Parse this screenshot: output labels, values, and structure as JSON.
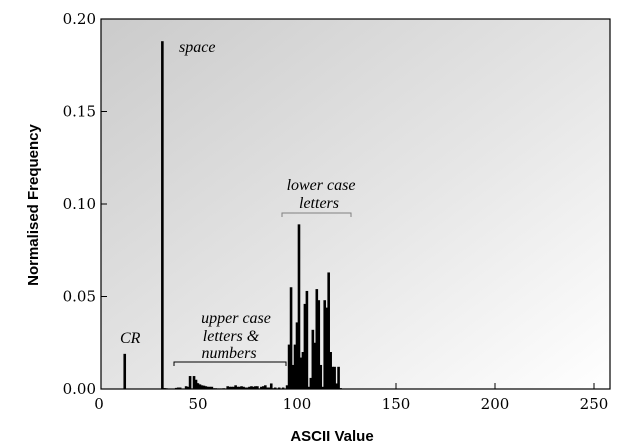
{
  "chart_data": {
    "type": "bar",
    "xlabel": "ASCII Value",
    "ylabel": "Normalised Frequency",
    "xlim": [
      0,
      255
    ],
    "ylim": [
      0,
      0.2
    ],
    "grid": false,
    "xticks": [
      "0",
      "50",
      "100",
      "150",
      "200",
      "250"
    ],
    "yticks": [
      "0.00",
      "0.05",
      "0.10",
      "0.15",
      "0.20"
    ],
    "x": [
      13,
      32,
      33,
      34,
      39,
      40,
      41,
      44,
      45,
      46,
      47,
      48,
      49,
      50,
      51,
      52,
      53,
      54,
      55,
      56,
      57,
      58,
      59,
      60,
      61,
      62,
      63,
      65,
      66,
      67,
      68,
      69,
      70,
      71,
      72,
      73,
      74,
      75,
      76,
      77,
      78,
      79,
      80,
      81,
      82,
      83,
      84,
      85,
      86,
      87,
      88,
      89,
      90,
      91,
      93,
      95,
      96,
      97,
      98,
      99,
      100,
      101,
      102,
      103,
      104,
      105,
      106,
      107,
      108,
      109,
      110,
      111,
      112,
      113,
      114,
      115,
      116,
      117,
      118,
      119,
      120,
      121,
      122
    ],
    "values": [
      0.019,
      0.188,
      0.0005,
      0.0004,
      0.0006,
      0.0008,
      0.0008,
      0.0015,
      0.0012,
      0.007,
      0.0003,
      0.007,
      0.005,
      0.003,
      0.0025,
      0.002,
      0.0018,
      0.0015,
      0.0012,
      0.0012,
      0.0012,
      0.0004,
      0.0004,
      0.0003,
      0.0003,
      0.0003,
      0.0004,
      0.0015,
      0.0012,
      0.0012,
      0.0012,
      0.002,
      0.0012,
      0.0012,
      0.0015,
      0.0012,
      0.0008,
      0.0008,
      0.0012,
      0.0015,
      0.0012,
      0.0015,
      0.0015,
      0.0003,
      0.0012,
      0.0015,
      0.002,
      0.0008,
      0.0008,
      0.003,
      0.0004,
      0.0008,
      0.0003,
      0.0008,
      0.0008,
      0.002,
      0.024,
      0.055,
      0.013,
      0.024,
      0.036,
      0.089,
      0.017,
      0.02,
      0.046,
      0.053,
      0.0012,
      0.006,
      0.032,
      0.025,
      0.054,
      0.048,
      0.013,
      0.0012,
      0.048,
      0.044,
      0.063,
      0.02,
      0.012,
      0.012,
      0.003,
      0.012,
      0.0005
    ],
    "annotations": [
      "CR",
      "space",
      "lower case",
      "letters",
      "upper case",
      "letters &",
      "numbers"
    ]
  }
}
